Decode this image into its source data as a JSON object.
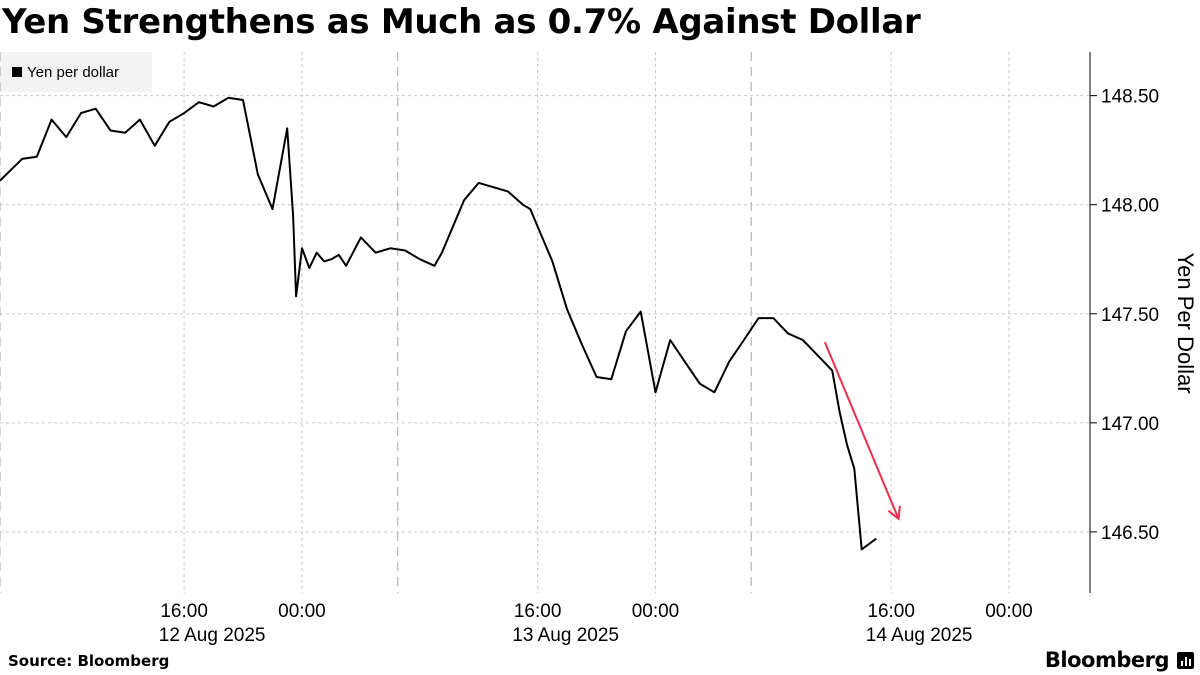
{
  "title": "Yen Strengthens as Much as 0.7% Against Dollar",
  "source": "Source: Bloomberg",
  "brand": "Bloomberg",
  "colors": {
    "series": "#000000",
    "annotation_arrow": "#e8304f",
    "legend_bg": "#f2f2f2",
    "grid": "#c8c8c8"
  },
  "chart_data": {
    "type": "line",
    "ylabel": "Yen Per Dollar",
    "ylim": [
      146.22,
      148.7
    ],
    "y_ticks": [
      146.5,
      147.0,
      147.5,
      148.0,
      148.5
    ],
    "y_tick_labels": [
      "146.50",
      "147.00",
      "147.50",
      "148.00",
      "148.50"
    ],
    "x_range_hours": [
      -12.5,
      61.5
    ],
    "x_ticks": [
      {
        "hour": 0,
        "label": "16:00",
        "date": "12 Aug 2025"
      },
      {
        "hour": 8,
        "label": "00:00",
        "date": ""
      },
      {
        "hour": 24,
        "label": "16:00",
        "date": "13 Aug 2025"
      },
      {
        "hour": 32,
        "label": "00:00",
        "date": ""
      },
      {
        "hour": 48,
        "label": "16:00",
        "date": "14 Aug 2025"
      },
      {
        "hour": 56,
        "label": "00:00",
        "date": ""
      }
    ],
    "session_dividers_hours": [
      -12.5,
      14.5,
      38.5
    ],
    "legend_position": "top-left",
    "grid": true,
    "series": [
      {
        "name": "Yen per dollar",
        "x": [
          -12.5,
          -11,
          -10,
          -9,
          -8,
          -7,
          -6,
          -5,
          -4,
          -3,
          -2,
          -1,
          0,
          1,
          2,
          3,
          4,
          5,
          6,
          7,
          7.4,
          7.6,
          8,
          8.5,
          9,
          9.5,
          10,
          10.5,
          11,
          12,
          13,
          14,
          15,
          16,
          17,
          17.5,
          18,
          19,
          20,
          21,
          22,
          23,
          23.5,
          24,
          25,
          26,
          27,
          28,
          29,
          30,
          31,
          32,
          33,
          34,
          35,
          36,
          37,
          38,
          39,
          40,
          41,
          42,
          43,
          44,
          44.5,
          45,
          45.5,
          46,
          47
        ],
        "values": [
          148.11,
          148.21,
          148.22,
          148.39,
          148.31,
          148.42,
          148.44,
          148.34,
          148.33,
          148.39,
          148.27,
          148.38,
          148.42,
          148.47,
          148.45,
          148.49,
          148.48,
          148.14,
          147.98,
          148.35,
          147.95,
          147.58,
          147.8,
          147.71,
          147.78,
          147.74,
          147.75,
          147.77,
          147.72,
          147.85,
          147.78,
          147.8,
          147.79,
          147.75,
          147.72,
          147.78,
          147.86,
          148.02,
          148.1,
          148.08,
          148.06,
          148.0,
          147.98,
          147.9,
          147.74,
          147.52,
          147.36,
          147.21,
          147.2,
          147.42,
          147.51,
          147.14,
          147.38,
          147.28,
          147.18,
          147.14,
          147.28,
          147.38,
          147.48,
          147.48,
          147.41,
          147.38,
          147.31,
          147.24,
          147.05,
          146.9,
          146.79,
          146.42,
          146.47
        ]
      }
    ],
    "annotation": {
      "type": "arrow",
      "from": [
        43.5,
        147.37
      ],
      "to": [
        48.5,
        146.56
      ]
    }
  }
}
